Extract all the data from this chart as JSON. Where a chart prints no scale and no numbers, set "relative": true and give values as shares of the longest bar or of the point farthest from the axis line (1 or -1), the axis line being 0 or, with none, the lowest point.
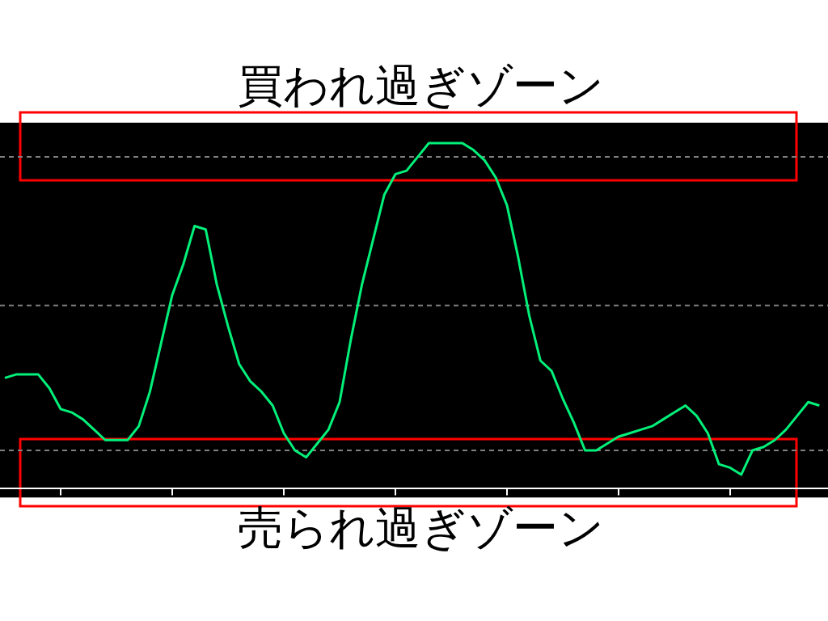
{
  "chart_data": {
    "type": "line",
    "relative": true,
    "categories": [
      null,
      null,
      null,
      null,
      null,
      null,
      null,
      null,
      null,
      null,
      null,
      null,
      null,
      null,
      null,
      null,
      null,
      null,
      null,
      null,
      null,
      null,
      null,
      null,
      null,
      null,
      null,
      null,
      null,
      null,
      null,
      null,
      null,
      null,
      null,
      null,
      null,
      null,
      null,
      null,
      null,
      null,
      null,
      null,
      null,
      null,
      null,
      null,
      null,
      null,
      null,
      null,
      null,
      null,
      null,
      null,
      null,
      null,
      null,
      null,
      null,
      null,
      null,
      null,
      null,
      null,
      null,
      null,
      null,
      null,
      null,
      null,
      null,
      null
    ],
    "series": [
      {
        "color": "#00f07a",
        "values": [
          0.32,
          0.33,
          0.33,
          0.33,
          0.29,
          0.23,
          0.22,
          0.2,
          0.17,
          0.14,
          0.14,
          0.14,
          0.18,
          0.28,
          0.42,
          0.56,
          0.65,
          0.76,
          0.75,
          0.59,
          0.47,
          0.36,
          0.31,
          0.28,
          0.24,
          0.16,
          0.11,
          0.09,
          0.13,
          0.17,
          0.25,
          0.43,
          0.59,
          0.72,
          0.85,
          0.91,
          0.92,
          0.96,
          1.0,
          1.0,
          1.0,
          1.0,
          0.98,
          0.95,
          0.9,
          0.82,
          0.67,
          0.5,
          0.37,
          0.34,
          0.26,
          0.19,
          0.11,
          0.11,
          0.13,
          0.15,
          0.16,
          0.17,
          0.18,
          0.2,
          0.22,
          0.24,
          0.21,
          0.16,
          0.07,
          0.06,
          0.04,
          0.11,
          0.12,
          0.14,
          0.17,
          0.21,
          0.25,
          0.24
        ]
      }
    ],
    "ref_lines": [
      {
        "axis": "y",
        "value": 0.96,
        "color": "#808080",
        "line_style": "dashed"
      },
      {
        "axis": "y",
        "value": 0.53,
        "color": "#808080",
        "line_style": "dashed"
      },
      {
        "axis": "y",
        "value": 0.11,
        "color": "#808080",
        "line_style": "dashed"
      }
    ],
    "annotations": [
      "買われ過ぎゾーン",
      "売られ過ぎゾーン"
    ]
  }
}
